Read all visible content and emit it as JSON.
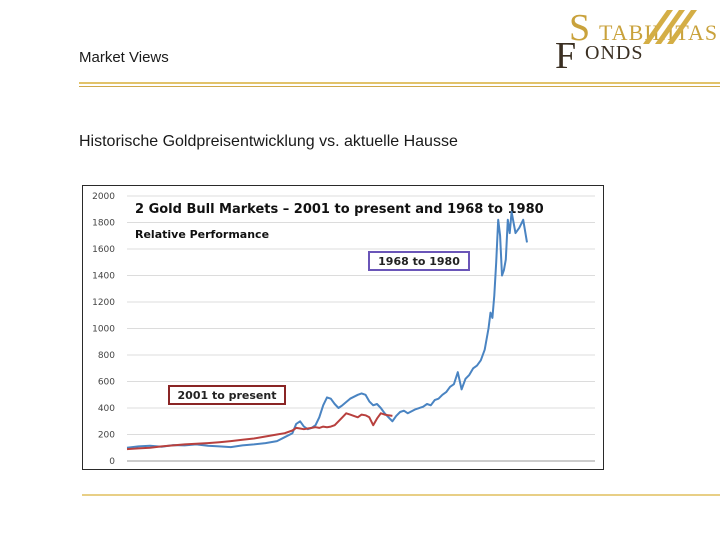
{
  "header": {
    "title": "Market Views"
  },
  "subtitle": "Historische Goldpreisentwicklung vs. aktuelle Hausse",
  "logo": {
    "first_letter": "S",
    "line1": "TABILITAS",
    "second_letter": "F",
    "line2": "ONDS"
  },
  "colors": {
    "accent_gold": "#e2c36a",
    "series_1968": "#4a84c2",
    "series_2001": "#b8403e",
    "box_1968": "#6a55b8",
    "box_2001": "#8a2525"
  },
  "chart_data": {
    "type": "line",
    "title": "2 Gold Bull Markets – 2001 to present and 1968 to 1980",
    "subtitle": "Relative Performance",
    "xlabel": "",
    "ylabel": "",
    "ylim": [
      0,
      2000
    ],
    "yticks": [
      0,
      200,
      400,
      600,
      800,
      1000,
      1200,
      1400,
      1600,
      1800,
      2000
    ],
    "x_range": [
      0,
      100
    ],
    "series": [
      {
        "name": "1968 to 1980",
        "points": [
          [
            0,
            100
          ],
          [
            3,
            110
          ],
          [
            6,
            115
          ],
          [
            9,
            108
          ],
          [
            12,
            120
          ],
          [
            15,
            118
          ],
          [
            18,
            125
          ],
          [
            21,
            115
          ],
          [
            24,
            110
          ],
          [
            27,
            105
          ],
          [
            30,
            118
          ],
          [
            33,
            125
          ],
          [
            36,
            135
          ],
          [
            39,
            150
          ],
          [
            41,
            180
          ],
          [
            43,
            210
          ],
          [
            44,
            280
          ],
          [
            45,
            300
          ],
          [
            46,
            260
          ],
          [
            47,
            240
          ],
          [
            48,
            250
          ],
          [
            49,
            270
          ],
          [
            50,
            330
          ],
          [
            51,
            420
          ],
          [
            52,
            480
          ],
          [
            53,
            470
          ],
          [
            54,
            430
          ],
          [
            55,
            400
          ],
          [
            56,
            420
          ],
          [
            58,
            470
          ],
          [
            60,
            500
          ],
          [
            61,
            510
          ],
          [
            62,
            500
          ],
          [
            63,
            450
          ],
          [
            64,
            420
          ],
          [
            65,
            430
          ],
          [
            66,
            400
          ],
          [
            67,
            360
          ],
          [
            68,
            330
          ],
          [
            69,
            300
          ],
          [
            70,
            340
          ],
          [
            71,
            370
          ],
          [
            72,
            380
          ],
          [
            73,
            360
          ],
          [
            75,
            390
          ],
          [
            77,
            410
          ],
          [
            78,
            430
          ],
          [
            79,
            420
          ],
          [
            80,
            460
          ],
          [
            81,
            470
          ],
          [
            82,
            500
          ],
          [
            83,
            520
          ],
          [
            84,
            560
          ],
          [
            85,
            580
          ],
          [
            86,
            670
          ],
          [
            87,
            540
          ],
          [
            88,
            620
          ],
          [
            89,
            650
          ],
          [
            90,
            700
          ],
          [
            91,
            720
          ],
          [
            92,
            760
          ],
          [
            93,
            840
          ],
          [
            94,
            1000
          ],
          [
            94.5,
            1120
          ],
          [
            95,
            1080
          ],
          [
            95.5,
            1250
          ],
          [
            96,
            1500
          ],
          [
            96.5,
            1820
          ],
          [
            97,
            1700
          ],
          [
            97.5,
            1400
          ],
          [
            98,
            1440
          ],
          [
            98.5,
            1520
          ],
          [
            99,
            1820
          ],
          [
            99.5,
            1720
          ],
          [
            100,
            1880
          ],
          [
            101,
            1720
          ],
          [
            102,
            1760
          ],
          [
            103,
            1820
          ],
          [
            104,
            1650
          ]
        ]
      },
      {
        "name": "2001 to present",
        "points": [
          [
            0,
            90
          ],
          [
            3,
            95
          ],
          [
            6,
            100
          ],
          [
            9,
            110
          ],
          [
            12,
            118
          ],
          [
            15,
            125
          ],
          [
            18,
            130
          ],
          [
            21,
            135
          ],
          [
            24,
            142
          ],
          [
            27,
            150
          ],
          [
            30,
            160
          ],
          [
            33,
            170
          ],
          [
            36,
            185
          ],
          [
            39,
            200
          ],
          [
            41,
            210
          ],
          [
            43,
            230
          ],
          [
            44,
            250
          ],
          [
            45,
            245
          ],
          [
            46,
            240
          ],
          [
            47,
            245
          ],
          [
            48,
            250
          ],
          [
            49,
            255
          ],
          [
            50,
            250
          ],
          [
            51,
            260
          ],
          [
            52,
            255
          ],
          [
            53,
            260
          ],
          [
            54,
            270
          ],
          [
            55,
            300
          ],
          [
            56,
            330
          ],
          [
            57,
            360
          ],
          [
            58,
            350
          ],
          [
            59,
            340
          ],
          [
            60,
            330
          ],
          [
            61,
            350
          ],
          [
            62,
            345
          ],
          [
            63,
            330
          ],
          [
            64,
            270
          ],
          [
            65,
            320
          ],
          [
            66,
            360
          ],
          [
            67,
            350
          ],
          [
            68,
            345
          ],
          [
            69,
            340
          ]
        ]
      }
    ],
    "annotations": [
      "1968 to 1980",
      "2001 to present"
    ]
  }
}
